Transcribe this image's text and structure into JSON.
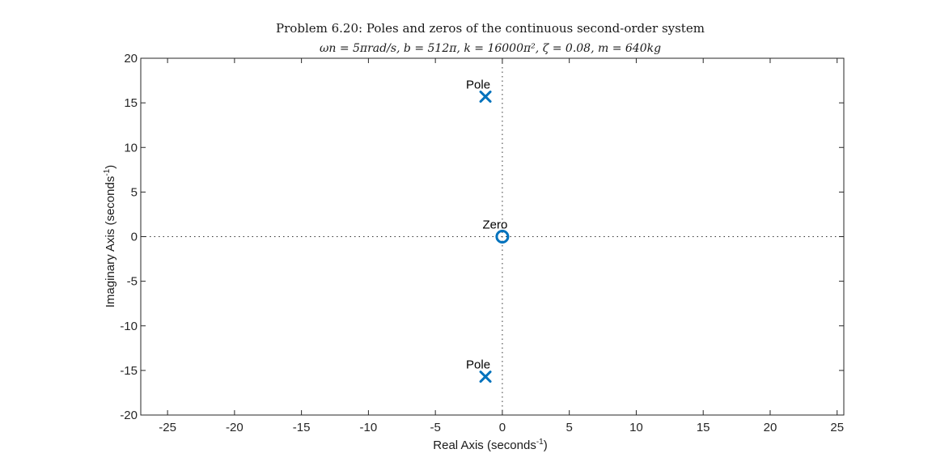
{
  "chart_data": {
    "type": "scatter",
    "title": "Problem 6.20: Poles and zeros of the continuous second-order system",
    "subtitle": "ωn = 5πrad/s, b = 512π, k = 16000π², ζ = 0.08, m = 640kg",
    "xlabel": "Real Axis (seconds",
    "ylabel": "Imaginary Axis (seconds",
    "axis_unit_exponent": "-1",
    "xlim": [
      -27,
      25.5
    ],
    "ylim": [
      -20,
      20
    ],
    "xticks": [
      -25,
      -20,
      -15,
      -10,
      -5,
      0,
      5,
      10,
      15,
      20,
      25
    ],
    "yticks": [
      -20,
      -15,
      -10,
      -5,
      0,
      5,
      10,
      15,
      20
    ],
    "grid": false,
    "reference_lines": "dotted lines at x=0 and y=0",
    "series": [
      {
        "marker": "x",
        "color": "#0072BD",
        "points": [
          {
            "x": -1.26,
            "y": 15.7,
            "label": "Pole"
          },
          {
            "x": -1.26,
            "y": -15.7,
            "label": "Pole"
          }
        ]
      },
      {
        "marker": "o",
        "color": "#0072BD",
        "points": [
          {
            "x": 0,
            "y": 0,
            "label": "Zero"
          }
        ]
      }
    ]
  }
}
